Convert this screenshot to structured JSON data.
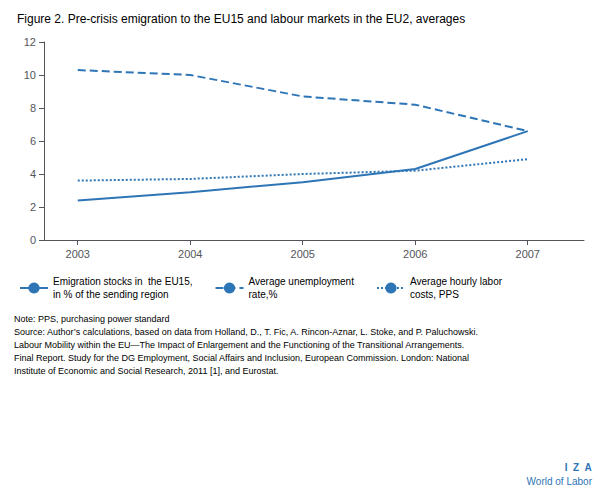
{
  "chart_data": {
    "type": "line",
    "title": "Figure 2. Pre-crisis emigration to the EU15 and labour markets in the EU2, averages",
    "x": [
      2003,
      2004,
      2005,
      2006,
      2007
    ],
    "series": [
      {
        "name": "Emigration stocks in  the EU15,\nin % of the sending region",
        "color": "#2e75b6",
        "line_style": "solid",
        "values": [
          2.4,
          2.9,
          3.5,
          4.3,
          6.6
        ]
      },
      {
        "name": "Average unemployment\nrate,%",
        "color": "#2e75b6",
        "line_style": "dashed",
        "values": [
          10.3,
          10.0,
          8.7,
          8.2,
          6.6
        ]
      },
      {
        "name": "Average hourly labor\ncosts, PPS",
        "color": "#2e75b6",
        "line_style": "dotted",
        "values": [
          3.6,
          3.7,
          4.0,
          4.2,
          4.9
        ]
      }
    ],
    "marker": "none",
    "xlim": [
      2002.7,
      2007.5
    ],
    "xticks": [
      2003,
      2004,
      2005,
      2006,
      2007
    ],
    "ylim": [
      0,
      12
    ],
    "yticks": [
      0,
      2,
      4,
      6,
      8,
      10,
      12
    ],
    "grid": false,
    "legend": "bottom",
    "annotations": [
      "Note: PPS, purchasing power standard",
      "Source: Author’s calculations, based on data from Holland, D., T. Fic, A. Rincon-Aznar, L. Stoke, and P. Paluchowski.",
      "Labour Mobility within the EU—The Impact of Enlargement and the Functioning of the Transitional Arrangements.",
      "Final Report. Study for the DG Employment, Social Affairs and Inclusion, European Commission. London: National",
      "Institute of Economic and Social Research, 2011 [1], and Eurostat.",
      "I  Z  A",
      "World of Labor"
    ]
  }
}
